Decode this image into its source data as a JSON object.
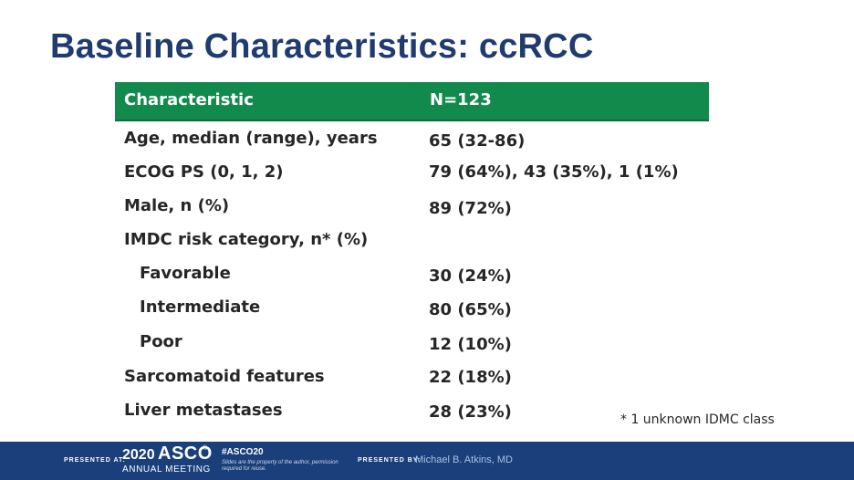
{
  "title": "Baseline Characteristics: ccRCC",
  "table": {
    "headers": [
      "Characteristic",
      "N=123"
    ],
    "rows": [
      {
        "label": "Age, median (range), years",
        "value": "65 (32-86)"
      },
      {
        "label": "ECOG PS (0, 1, 2)",
        "value": "79 (64%), 43 (35%), 1 (1%)"
      },
      {
        "label": "Male, n (%)",
        "value": "89 (72%)"
      },
      {
        "label": "IMDC risk category, n* (%)",
        "value": ""
      },
      {
        "label": "Favorable",
        "value": "30 (24%)"
      },
      {
        "label": "Intermediate",
        "value": "80 (65%)"
      },
      {
        "label": "Poor",
        "value": "12 (10%)"
      },
      {
        "label": "Sarcomatoid features",
        "value": "22 (18%)"
      },
      {
        "label": "Liver metastases",
        "value": "28 (23%)"
      }
    ]
  },
  "footnote": "* 1 unknown IDMC class",
  "footer": {
    "presented_at": "PRESENTED AT:",
    "year": "2020",
    "asco": "ASCO",
    "registered": "®",
    "annual_meeting": "ANNUAL MEETING",
    "hashtag": "#ASCO20",
    "slides_note": "Slides are the property of the author, permission required for reuse.",
    "presented_by": "PRESENTED BY:",
    "presenter": "Michael B. Atkins, MD"
  },
  "colors": {
    "title": "#1f3b70",
    "header_bg": "#118a4c",
    "footer_bg": "#1a3f7a"
  }
}
